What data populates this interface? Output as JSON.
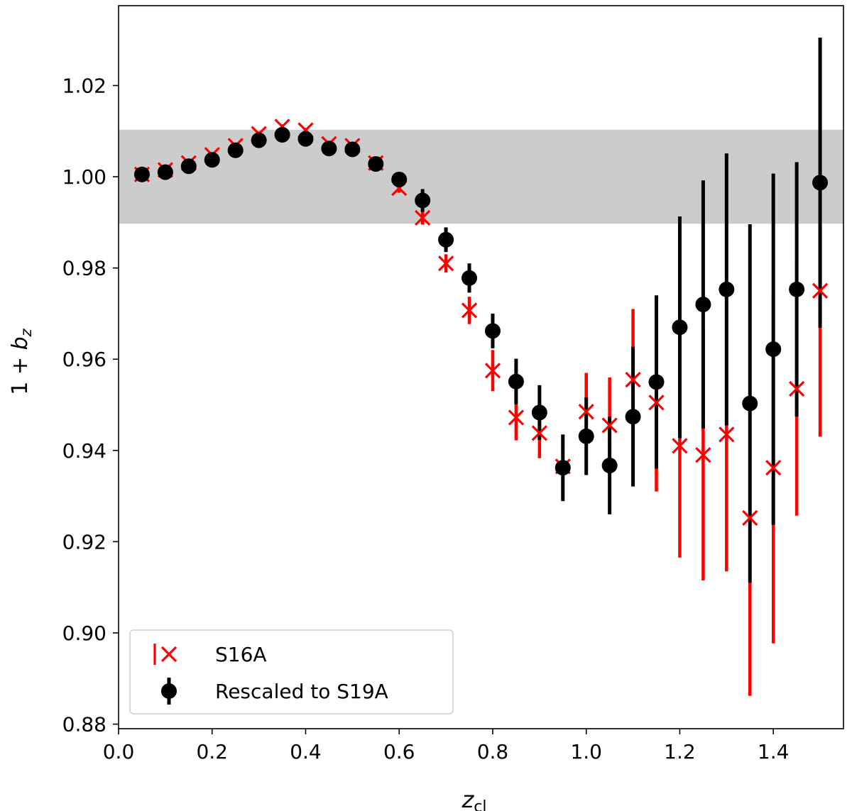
{
  "chart_data": {
    "type": "scatter",
    "xlabel": "z_cl",
    "xlabel_main": "z",
    "xlabel_sub": "cl",
    "ylabel": "1 + b_z",
    "ylabel_prefix": "1 + ",
    "ylabel_main": "b",
    "ylabel_sub": "z",
    "xlim": [
      0.0,
      1.55
    ],
    "ylim": [
      0.879,
      1.0375
    ],
    "xticks": [
      0.0,
      0.2,
      0.4,
      0.6,
      0.8,
      1.0,
      1.2,
      1.4
    ],
    "xtick_labels": [
      "0.0",
      "0.2",
      "0.4",
      "0.6",
      "0.8",
      "1.0",
      "1.2",
      "1.4"
    ],
    "yticks": [
      0.88,
      0.9,
      0.92,
      0.94,
      0.96,
      0.98,
      1.0,
      1.02
    ],
    "ytick_labels": [
      "0.88",
      "0.90",
      "0.92",
      "0.94",
      "0.96",
      "0.98",
      "1.00",
      "1.02"
    ],
    "band": {
      "y_low": 0.9897,
      "y_high": 1.0103,
      "color": "#cccccc"
    },
    "legend_position": "lower-left",
    "series": [
      {
        "name": "S16A",
        "marker": "x",
        "color": "#ff0000",
        "x": [
          0.05,
          0.1,
          0.15,
          0.2,
          0.25,
          0.3,
          0.35,
          0.4,
          0.45,
          0.5,
          0.55,
          0.6,
          0.65,
          0.7,
          0.75,
          0.8,
          0.85,
          0.9,
          0.95,
          1.0,
          1.05,
          1.1,
          1.15,
          1.2,
          1.25,
          1.3,
          1.35,
          1.4,
          1.45,
          1.5
        ],
        "y": [
          1.0005,
          1.0015,
          1.003,
          1.0048,
          1.0068,
          1.0094,
          1.011,
          1.0102,
          1.0072,
          1.0068,
          1.003,
          0.9975,
          0.991,
          0.981,
          0.9707,
          0.9575,
          0.9472,
          0.9438,
          0.9365,
          0.9485,
          0.9455,
          0.9555,
          0.9505,
          0.941,
          0.939,
          0.9435,
          0.9252,
          0.9362,
          0.9535,
          0.975
        ],
        "err": [
          0.0005,
          0.0005,
          0.0005,
          0.0005,
          0.0005,
          0.0005,
          0.0005,
          0.0005,
          0.0005,
          0.0005,
          0.0005,
          0.001,
          0.0015,
          0.002,
          0.003,
          0.0045,
          0.005,
          0.0055,
          0.006,
          0.0085,
          0.0105,
          0.0155,
          0.0195,
          0.0245,
          0.0275,
          0.03,
          0.039,
          0.0385,
          0.0278,
          0.032
        ]
      },
      {
        "name": "Rescaled to S19A",
        "marker": "o",
        "color": "#000000",
        "x": [
          0.05,
          0.1,
          0.15,
          0.2,
          0.25,
          0.3,
          0.35,
          0.4,
          0.45,
          0.5,
          0.55,
          0.6,
          0.65,
          0.7,
          0.75,
          0.8,
          0.85,
          0.9,
          0.95,
          1.0,
          1.05,
          1.1,
          1.15,
          1.2,
          1.25,
          1.3,
          1.35,
          1.4,
          1.45,
          1.5
        ],
        "y": [
          1.0005,
          1.001,
          1.0023,
          1.0037,
          1.0058,
          1.008,
          1.0092,
          1.0083,
          1.0062,
          1.006,
          1.0028,
          0.9994,
          0.9948,
          0.9862,
          0.9778,
          0.9662,
          0.9551,
          0.9483,
          0.9362,
          0.9431,
          0.9367,
          0.9474,
          0.955,
          0.967,
          0.972,
          0.9753,
          0.9503,
          0.9622,
          0.9753,
          0.9987
        ],
        "err": [
          0.0004,
          0.0004,
          0.0004,
          0.0004,
          0.0004,
          0.0004,
          0.0004,
          0.0004,
          0.0004,
          0.0004,
          0.0005,
          0.0008,
          0.0025,
          0.0027,
          0.0032,
          0.0038,
          0.005,
          0.006,
          0.0073,
          0.0085,
          0.0107,
          0.0153,
          0.019,
          0.0243,
          0.0272,
          0.0298,
          0.0393,
          0.0385,
          0.0279,
          0.0318
        ]
      }
    ]
  }
}
